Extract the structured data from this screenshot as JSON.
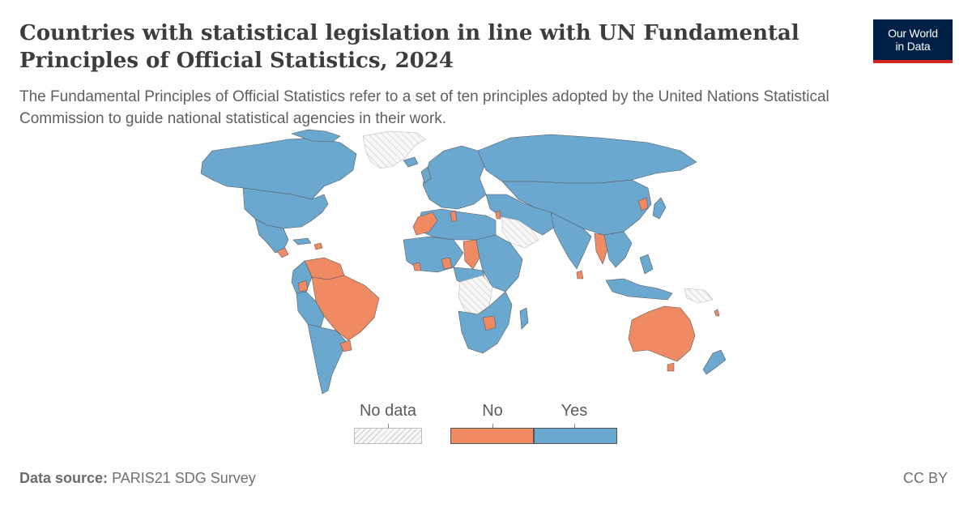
{
  "title": "Countries with statistical legislation in line with UN Fundamental Principles of Official Statistics, 2024",
  "subtitle": "The Fundamental Principles of Official Statistics refer to a set of ten principles adopted by the United Nations Statistical Commission to guide national statistical agencies in their work.",
  "logo": {
    "line1": "Our World",
    "line2": "in Data"
  },
  "colors": {
    "yes": "#6ba8d0",
    "no": "#ef8a62",
    "no_data": "#f0f0f0",
    "border": "#555555",
    "logo_bg": "#002147",
    "logo_accent": "#ce261e"
  },
  "legend": {
    "no_data_label": "No data",
    "no_label": "No",
    "yes_label": "Yes"
  },
  "map_data": {
    "type": "choropleth",
    "categories": [
      "No data",
      "No",
      "Yes"
    ],
    "no": [
      "Australia",
      "Brazil",
      "Venezuela",
      "Guyana",
      "Suriname",
      "Colombia",
      "Uruguay",
      "Honduras",
      "Nicaragua",
      "Dominican Republic",
      "Morocco",
      "Western Sahara",
      "Tunisia",
      "Chad",
      "Liberia",
      "Nigeria",
      "Zimbabwe",
      "Eswatini",
      "Israel",
      "Myanmar",
      "North Korea",
      "Sri Lanka",
      "Vanuatu"
    ],
    "no_data": [
      "Greenland",
      "Saudi Arabia",
      "Democratic Republic of the Congo",
      "Zambia",
      "Papua New Guinea",
      "Algeria (south)",
      "Mauritania"
    ],
    "yes": [
      "United States",
      "Canada",
      "Mexico",
      "Argentina",
      "Chile",
      "Peru",
      "Bolivia",
      "Paraguay",
      "Ecuador",
      "Russia",
      "China",
      "India",
      "Mongolia",
      "Kazakhstan",
      "Iran",
      "Indonesia",
      "Japan",
      "New Zealand",
      "Egypt",
      "Sudan",
      "Ethiopia",
      "South Africa",
      "Europe"
    ]
  },
  "footer": {
    "source_label": "Data source:",
    "source_value": "PARIS21 SDG Survey",
    "license": "CC BY"
  }
}
